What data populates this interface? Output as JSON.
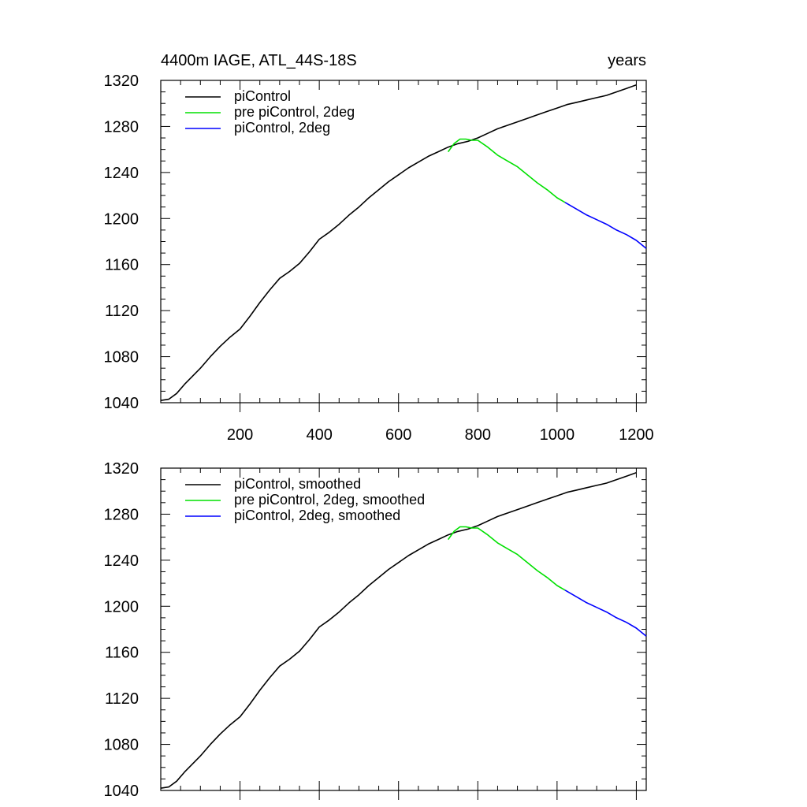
{
  "chart_data": [
    {
      "type": "line",
      "title": "4400m IAGE, ATL_44S-18S",
      "right_title": "years",
      "xlim": [
        0,
        1225
      ],
      "ylim": [
        1040,
        1320
      ],
      "yticks": [
        1040,
        1080,
        1120,
        1160,
        1200,
        1240,
        1280,
        1320
      ],
      "xticks": [
        200,
        400,
        600,
        800,
        1000,
        1200
      ],
      "xtick_labels_visible": true,
      "legend_position": "top-left",
      "grid": false,
      "series": [
        {
          "name": "piControl",
          "color": "#000000",
          "x": [
            1,
            20,
            40,
            60,
            80,
            100,
            125,
            150,
            175,
            200,
            225,
            250,
            275,
            300,
            325,
            350,
            375,
            400,
            425,
            450,
            475,
            500,
            525,
            550,
            575,
            600,
            625,
            650,
            675,
            700,
            725,
            750,
            775,
            800,
            825,
            850,
            875,
            900,
            925,
            950,
            975,
            1000,
            1025,
            1050,
            1075,
            1100,
            1125,
            1150,
            1175,
            1200
          ],
          "y": [
            1042,
            1043,
            1048,
            1056,
            1063,
            1070,
            1080,
            1089,
            1097,
            1104,
            1115,
            1127,
            1138,
            1148,
            1154,
            1161,
            1171,
            1182,
            1188,
            1195,
            1203,
            1210,
            1218,
            1225,
            1232,
            1238,
            1244,
            1249,
            1254,
            1258,
            1262,
            1265,
            1267,
            1270,
            1274,
            1278,
            1281,
            1284,
            1287,
            1290,
            1293,
            1296,
            1299,
            1301,
            1303,
            1305,
            1307,
            1310,
            1313,
            1316
          ]
        },
        {
          "name": "pre piControl, 2deg",
          "color": "#00e000",
          "x": [
            725,
            740,
            755,
            770,
            785,
            800,
            825,
            850,
            875,
            900,
            925,
            950,
            975,
            1000,
            1020
          ],
          "y": [
            1258,
            1265,
            1269,
            1269,
            1268,
            1268,
            1262,
            1255,
            1250,
            1245,
            1238,
            1231,
            1225,
            1218,
            1214
          ]
        },
        {
          "name": "piControl, 2deg",
          "color": "#0000ff",
          "x": [
            1020,
            1050,
            1075,
            1100,
            1125,
            1150,
            1175,
            1200,
            1225
          ],
          "y": [
            1214,
            1208,
            1203,
            1199,
            1195,
            1190,
            1186,
            1181,
            1174
          ]
        }
      ]
    },
    {
      "type": "line",
      "title": "",
      "xlim": [
        0,
        1225
      ],
      "ylim": [
        1040,
        1320
      ],
      "yticks": [
        1040,
        1080,
        1120,
        1160,
        1200,
        1240,
        1280,
        1320
      ],
      "xticks": [
        200,
        400,
        600,
        800,
        1000,
        1200
      ],
      "xtick_labels_visible": false,
      "legend_position": "top-left",
      "grid": false,
      "series": [
        {
          "name": "piControl, smoothed",
          "color": "#000000",
          "x": [
            1,
            20,
            40,
            60,
            80,
            100,
            125,
            150,
            175,
            200,
            225,
            250,
            275,
            300,
            325,
            350,
            375,
            400,
            425,
            450,
            475,
            500,
            525,
            550,
            575,
            600,
            625,
            650,
            675,
            700,
            725,
            750,
            775,
            800,
            825,
            850,
            875,
            900,
            925,
            950,
            975,
            1000,
            1025,
            1050,
            1075,
            1100,
            1125,
            1150,
            1175,
            1200
          ],
          "y": [
            1042,
            1043,
            1048,
            1056,
            1063,
            1070,
            1080,
            1089,
            1097,
            1104,
            1115,
            1127,
            1138,
            1148,
            1154,
            1161,
            1171,
            1182,
            1188,
            1195,
            1203,
            1210,
            1218,
            1225,
            1232,
            1238,
            1244,
            1249,
            1254,
            1258,
            1262,
            1265,
            1267,
            1270,
            1274,
            1278,
            1281,
            1284,
            1287,
            1290,
            1293,
            1296,
            1299,
            1301,
            1303,
            1305,
            1307,
            1310,
            1313,
            1316
          ]
        },
        {
          "name": "pre piControl, 2deg, smoothed",
          "color": "#00e000",
          "x": [
            725,
            740,
            755,
            770,
            785,
            800,
            825,
            850,
            875,
            900,
            925,
            950,
            975,
            1000,
            1020
          ],
          "y": [
            1258,
            1265,
            1269,
            1269,
            1268,
            1268,
            1262,
            1255,
            1250,
            1245,
            1238,
            1231,
            1225,
            1218,
            1214
          ]
        },
        {
          "name": "piControl, 2deg, smoothed",
          "color": "#0000ff",
          "x": [
            1020,
            1050,
            1075,
            1100,
            1125,
            1150,
            1175,
            1200,
            1225
          ],
          "y": [
            1214,
            1208,
            1203,
            1199,
            1195,
            1190,
            1186,
            1181,
            1174
          ]
        }
      ]
    }
  ]
}
